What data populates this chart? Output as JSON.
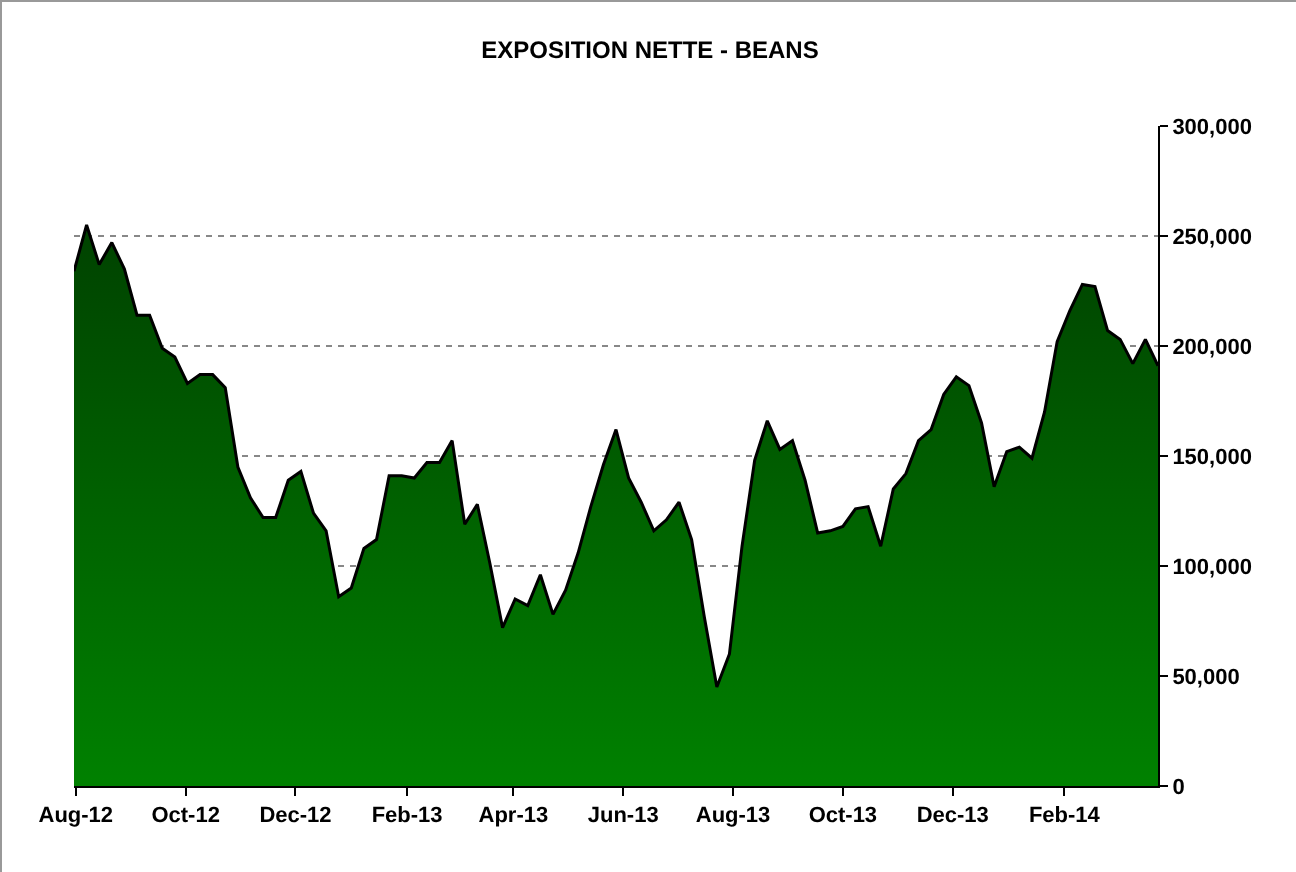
{
  "chart_data": {
    "type": "area",
    "title": "EXPOSITION NETTE - BEANS",
    "x": [
      "2012-07-31",
      "2012-08-07",
      "2012-08-14",
      "2012-08-21",
      "2012-08-28",
      "2012-09-04",
      "2012-09-11",
      "2012-09-18",
      "2012-09-25",
      "2012-10-02",
      "2012-10-09",
      "2012-10-16",
      "2012-10-23",
      "2012-10-30",
      "2012-11-06",
      "2012-11-13",
      "2012-11-20",
      "2012-11-27",
      "2012-12-04",
      "2012-12-11",
      "2012-12-18",
      "2012-12-25",
      "2013-01-01",
      "2013-01-08",
      "2013-01-15",
      "2013-01-22",
      "2013-01-29",
      "2013-02-05",
      "2013-02-12",
      "2013-02-19",
      "2013-02-26",
      "2013-03-05",
      "2013-03-12",
      "2013-03-19",
      "2013-03-26",
      "2013-04-02",
      "2013-04-09",
      "2013-04-16",
      "2013-04-23",
      "2013-04-30",
      "2013-05-07",
      "2013-05-14",
      "2013-05-21",
      "2013-05-28",
      "2013-06-04",
      "2013-06-11",
      "2013-06-18",
      "2013-06-25",
      "2013-07-02",
      "2013-07-09",
      "2013-07-16",
      "2013-07-23",
      "2013-07-30",
      "2013-08-06",
      "2013-08-13",
      "2013-08-20",
      "2013-08-27",
      "2013-09-03",
      "2013-09-10",
      "2013-09-17",
      "2013-09-24",
      "2013-10-01",
      "2013-10-08",
      "2013-10-15",
      "2013-10-22",
      "2013-10-29",
      "2013-11-05",
      "2013-11-12",
      "2013-11-19",
      "2013-11-26",
      "2013-12-03",
      "2013-12-10",
      "2013-12-17",
      "2013-12-24",
      "2013-12-31",
      "2014-01-07",
      "2014-01-14",
      "2014-01-21",
      "2014-01-28",
      "2014-02-04",
      "2014-02-11",
      "2014-02-18",
      "2014-02-25",
      "2014-03-04",
      "2014-03-11",
      "2014-03-18",
      "2014-03-25"
    ],
    "series": [
      {
        "color": "#006e00",
        "values": [
          234000,
          255000,
          237000,
          247000,
          235000,
          214000,
          214000,
          199000,
          195000,
          183000,
          187000,
          187000,
          181000,
          145000,
          131000,
          122000,
          122000,
          139000,
          143000,
          124000,
          116000,
          86000,
          90000,
          108000,
          112000,
          141000,
          141000,
          140000,
          147000,
          147000,
          157000,
          119000,
          128000,
          101000,
          72000,
          85000,
          82000,
          96000,
          78000,
          89000,
          106000,
          127000,
          146000,
          162000,
          140000,
          129000,
          116000,
          121000,
          129000,
          112000,
          77000,
          45000,
          60000,
          109000,
          148000,
          166000,
          153000,
          157000,
          139000,
          115000,
          116000,
          118000,
          126000,
          127000,
          109000,
          135000,
          142000,
          157000,
          162000,
          178000,
          186000,
          182000,
          165000,
          136000,
          152000,
          154000,
          149000,
          170000,
          202000,
          216000,
          228000,
          227000,
          207000,
          203000,
          192000,
          203000,
          191000
        ]
      }
    ],
    "xlim": [
      "2012-07-31",
      "2014-03-25"
    ],
    "xticks": [
      {
        "value": "2012-08-01",
        "label": "Aug-12"
      },
      {
        "value": "2012-10-01",
        "label": "Oct-12"
      },
      {
        "value": "2012-12-01",
        "label": "Dec-12"
      },
      {
        "value": "2013-02-01",
        "label": "Feb-13"
      },
      {
        "value": "2013-04-01",
        "label": "Apr-13"
      },
      {
        "value": "2013-06-01",
        "label": "Jun-13"
      },
      {
        "value": "2013-08-01",
        "label": "Aug-13"
      },
      {
        "value": "2013-10-01",
        "label": "Oct-13"
      },
      {
        "value": "2013-12-01",
        "label": "Dec-13"
      },
      {
        "value": "2014-02-01",
        "label": "Feb-14"
      }
    ],
    "ylim": [
      0,
      300000
    ],
    "yticks": [
      0,
      {
        "value": 50000,
        "label": "50,000"
      },
      {
        "value": 100000,
        "label": "100,000"
      },
      {
        "value": 150000,
        "label": "150,000"
      },
      {
        "value": 200000,
        "label": "200,000"
      },
      {
        "value": 250000,
        "label": "250,000"
      },
      {
        "value": 300000,
        "label": "300,000"
      }
    ],
    "grid": "y"
  }
}
